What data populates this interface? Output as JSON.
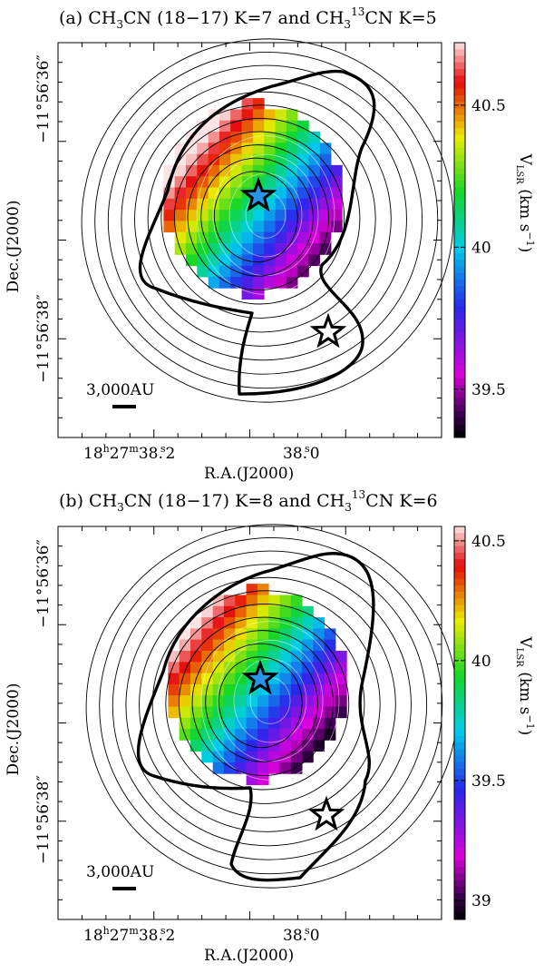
{
  "chart_data": [
    {
      "type": "heatmap",
      "title": "(a) CH3CN (18−17) K=7 and CH3 13CN K=5",
      "title_parts": {
        "label": "(a)",
        "molecule1": "CH",
        "sub1": "3",
        "molecule1_end": "CN (18−17) K=7 and CH",
        "sub2": "3",
        "sup2": "13",
        "molecule2_end": "CN K=5"
      },
      "ylabel": "Dec.(J2000)",
      "xlabel": "R.A.(J2000)",
      "y_ticks": [
        "−11°56′36″",
        "−11°56′38″"
      ],
      "x_ticks": {
        "ra_prefix": "18",
        "ra_h": "h",
        "ra_mid": "27",
        "ra_m": "m",
        "ra_sec_a": "38.2",
        "ra_sec_b": "38.0",
        "s": "s"
      },
      "colorbar": {
        "label": "V",
        "label_sub": "LSR",
        "label_unit": "(km s",
        "label_exp": "−1",
        "label_close": ")",
        "range": [
          39.33,
          40.72
        ],
        "ticks": [
          "40.5",
          "40",
          "39.5"
        ],
        "tick_values": [
          40.5,
          40.0,
          39.5
        ]
      },
      "scale_bar": "3,000AU",
      "markers": [
        "star-filled",
        "star-open"
      ]
    },
    {
      "type": "heatmap",
      "title": "(b) CH3CN (18−17) K=8 and CH3 13CN K=6",
      "title_parts": {
        "label": "(b)",
        "molecule1": "CH",
        "sub1": "3",
        "molecule1_end": "CN (18−17) K=8 and CH",
        "sub2": "3",
        "sup2": "13",
        "molecule2_end": "CN K=6"
      },
      "ylabel": "Dec.(J2000)",
      "xlabel": "R.A.(J2000)",
      "y_ticks": [
        "−11°56′36″",
        "−11°56′38″"
      ],
      "x_ticks": {
        "ra_prefix": "18",
        "ra_h": "h",
        "ra_mid": "27",
        "ra_m": "m",
        "ra_sec_a": "38.2",
        "ra_sec_b": "38.0",
        "s": "s"
      },
      "colorbar": {
        "label": "V",
        "label_sub": "LSR",
        "label_unit": "(km s",
        "label_exp": "−1",
        "label_close": ")",
        "range": [
          38.92,
          40.56
        ],
        "ticks": [
          "40.5",
          "40",
          "39.5",
          "39"
        ],
        "tick_values": [
          40.5,
          40.0,
          39.5,
          39.0
        ]
      },
      "scale_bar": "3,000AU",
      "markers": [
        "star-filled",
        "star-open"
      ]
    }
  ]
}
